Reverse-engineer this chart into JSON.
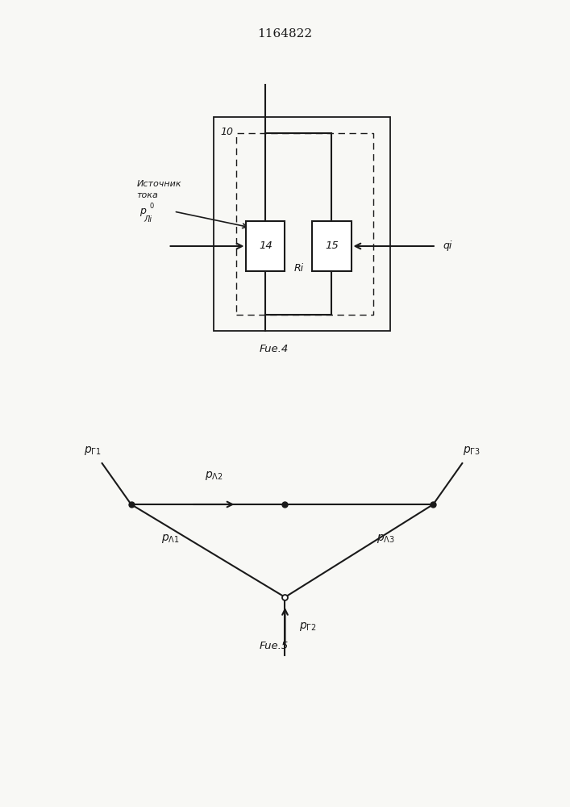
{
  "title": "1164822",
  "fig4_label": "Fue.4",
  "fig5_label": "Fue.5",
  "bg_color": "#f8f8f5",
  "line_color": "#1a1a1a",
  "box_color": "#ffffff",
  "source_line1": "Источник",
  "source_line2": "тока",
  "source_sub": "p°Лi",
  "qi_label": "qi",
  "label10": "10",
  "label14": "14",
  "label15": "15",
  "labelRi": "Ri",
  "pG1": "p_г1",
  "pG2": "p_г2",
  "pG3": "p_г3",
  "pL1": "p_Л1",
  "pL2": "p_Л2",
  "pL3": "p_Л3"
}
